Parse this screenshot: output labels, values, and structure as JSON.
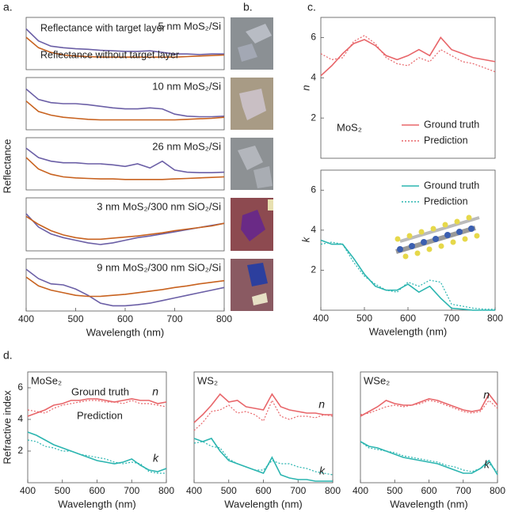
{
  "panel_labels": {
    "a": "a.",
    "b": "b.",
    "c": "c.",
    "d": "d."
  },
  "chart_data": [
    {
      "type": "line",
      "title": "5 nm MoS₂/Si",
      "ylabel": "Reflectance",
      "x": [
        400,
        425,
        450,
        475,
        500,
        525,
        550,
        575,
        600,
        625,
        650,
        675,
        700,
        725,
        750,
        775,
        800
      ],
      "xlim": [
        400,
        800
      ],
      "ylim": [
        0,
        1
      ],
      "series": [
        {
          "name": "Reflectance with target layer",
          "color": "#6b5fa6",
          "line": "solid",
          "values": [
            0.78,
            0.55,
            0.45,
            0.42,
            0.4,
            0.39,
            0.37,
            0.36,
            0.35,
            0.35,
            0.36,
            0.33,
            0.3,
            0.3,
            0.29,
            0.3,
            0.3
          ]
        },
        {
          "name": "Reflectance without target layer",
          "color": "#c8621f",
          "line": "solid",
          "values": [
            0.62,
            0.42,
            0.33,
            0.28,
            0.26,
            0.25,
            0.24,
            0.24,
            0.24,
            0.24,
            0.24,
            0.24,
            0.24,
            0.25,
            0.26,
            0.27,
            0.28
          ]
        }
      ]
    },
    {
      "type": "line",
      "title": "10 nm MoS₂/Si",
      "x": [
        400,
        425,
        450,
        475,
        500,
        525,
        550,
        575,
        600,
        625,
        650,
        675,
        700,
        725,
        750,
        775,
        800
      ],
      "xlim": [
        400,
        800
      ],
      "ylim": [
        0,
        1
      ],
      "series": [
        {
          "color": "#6b5fa6",
          "line": "solid",
          "values": [
            0.78,
            0.58,
            0.52,
            0.5,
            0.5,
            0.48,
            0.45,
            0.42,
            0.4,
            0.4,
            0.42,
            0.4,
            0.3,
            0.26,
            0.25,
            0.25,
            0.26
          ]
        },
        {
          "color": "#c8621f",
          "line": "solid",
          "values": [
            0.55,
            0.35,
            0.28,
            0.24,
            0.22,
            0.2,
            0.19,
            0.19,
            0.19,
            0.19,
            0.19,
            0.19,
            0.19,
            0.2,
            0.21,
            0.22,
            0.24
          ]
        }
      ]
    },
    {
      "type": "line",
      "title": "26 nm MoS₂/Si",
      "x": [
        400,
        425,
        450,
        475,
        500,
        525,
        550,
        575,
        600,
        625,
        650,
        675,
        700,
        725,
        750,
        775,
        800
      ],
      "xlim": [
        400,
        800
      ],
      "ylim": [
        0,
        1
      ],
      "series": [
        {
          "color": "#6b5fa6",
          "line": "solid",
          "values": [
            0.8,
            0.62,
            0.55,
            0.52,
            0.52,
            0.5,
            0.5,
            0.48,
            0.45,
            0.5,
            0.42,
            0.55,
            0.38,
            0.34,
            0.33,
            0.33,
            0.34
          ]
        },
        {
          "color": "#c8621f",
          "line": "solid",
          "values": [
            0.62,
            0.4,
            0.3,
            0.25,
            0.23,
            0.22,
            0.21,
            0.21,
            0.2,
            0.2,
            0.2,
            0.2,
            0.21,
            0.22,
            0.23,
            0.24,
            0.25
          ]
        }
      ]
    },
    {
      "type": "line",
      "title": "3 nm MoS₂/300 nm SiO₂/Si",
      "x": [
        400,
        425,
        450,
        475,
        500,
        525,
        550,
        575,
        600,
        625,
        650,
        675,
        700,
        725,
        750,
        775,
        800
      ],
      "xlim": [
        400,
        800
      ],
      "ylim": [
        0,
        1
      ],
      "series": [
        {
          "color": "#6b5fa6",
          "line": "solid",
          "values": [
            0.7,
            0.45,
            0.32,
            0.25,
            0.2,
            0.15,
            0.12,
            0.15,
            0.2,
            0.25,
            0.28,
            0.32,
            0.36,
            0.4,
            0.44,
            0.48,
            0.52
          ]
        },
        {
          "color": "#c8621f",
          "line": "solid",
          "values": [
            0.65,
            0.5,
            0.38,
            0.3,
            0.25,
            0.22,
            0.22,
            0.24,
            0.26,
            0.28,
            0.31,
            0.34,
            0.38,
            0.41,
            0.44,
            0.47,
            0.52
          ]
        }
      ]
    },
    {
      "type": "line",
      "title": "9 nm MoS₂/300 nm SiO₂/Si",
      "xlabel": "Wavelength (nm)",
      "x": [
        400,
        425,
        450,
        475,
        500,
        525,
        550,
        575,
        600,
        625,
        650,
        675,
        700,
        725,
        750,
        775,
        800
      ],
      "xlim": [
        400,
        800
      ],
      "ylim": [
        0,
        1
      ],
      "xticks": [
        400,
        500,
        600,
        700,
        800
      ],
      "series": [
        {
          "color": "#6b5fa6",
          "line": "solid",
          "values": [
            0.8,
            0.62,
            0.52,
            0.5,
            0.42,
            0.3,
            0.15,
            0.1,
            0.1,
            0.12,
            0.15,
            0.2,
            0.25,
            0.3,
            0.35,
            0.4,
            0.45
          ]
        },
        {
          "color": "#c8621f",
          "line": "solid",
          "values": [
            0.65,
            0.48,
            0.4,
            0.35,
            0.3,
            0.28,
            0.28,
            0.3,
            0.32,
            0.35,
            0.38,
            0.41,
            0.45,
            0.48,
            0.52,
            0.55,
            0.58
          ]
        }
      ]
    },
    {
      "type": "line",
      "ylabel": "n",
      "annotations": [
        "MoS₂"
      ],
      "legend": "lower right",
      "x": [
        400,
        425,
        450,
        475,
        500,
        525,
        550,
        575,
        600,
        625,
        650,
        675,
        700,
        725,
        750,
        775,
        800
      ],
      "xlim": [
        400,
        800
      ],
      "ylim": [
        0,
        7
      ],
      "yticks": [
        2,
        4,
        6
      ],
      "series": [
        {
          "name": "Ground truth",
          "color": "#e8666a",
          "line": "solid",
          "values": [
            4.1,
            4.6,
            5.2,
            5.7,
            5.9,
            5.6,
            5.1,
            4.9,
            5.1,
            5.4,
            5.1,
            6.0,
            5.4,
            5.2,
            5.0,
            4.9,
            4.8
          ]
        },
        {
          "name": "Prediction",
          "color": "#e8666a",
          "line": "dotted",
          "values": [
            5.2,
            4.9,
            5.0,
            5.8,
            6.1,
            5.7,
            5.0,
            4.7,
            4.6,
            5.0,
            4.8,
            5.4,
            5.1,
            4.8,
            4.7,
            4.5,
            4.3
          ]
        }
      ]
    },
    {
      "type": "line",
      "ylabel": "k",
      "xlabel": "Wavelength (nm)",
      "legend": "upper right",
      "x": [
        400,
        425,
        450,
        475,
        500,
        525,
        550,
        575,
        600,
        625,
        650,
        675,
        700,
        725,
        750,
        775,
        800
      ],
      "xlim": [
        400,
        800
      ],
      "ylim": [
        0,
        7
      ],
      "yticks": [
        2,
        4,
        6
      ],
      "xticks": [
        400,
        500,
        600,
        700,
        800
      ],
      "series": [
        {
          "name": "Ground truth",
          "color": "#2bb5b0",
          "line": "solid",
          "values": [
            3.5,
            3.3,
            3.3,
            2.6,
            1.8,
            1.2,
            1.0,
            1.0,
            1.3,
            0.9,
            1.2,
            0.6,
            0.1,
            0.05,
            0.0,
            0.0,
            0.0
          ]
        },
        {
          "name": "Prediction",
          "color": "#2bb5b0",
          "line": "dotted",
          "values": [
            3.3,
            3.4,
            3.3,
            2.4,
            1.7,
            1.3,
            1.0,
            0.9,
            1.4,
            1.2,
            1.5,
            1.4,
            0.3,
            0.2,
            0.1,
            0.05,
            0.05
          ]
        }
      ]
    },
    {
      "type": "line",
      "title": "MoSe₂",
      "ylabel": "Refractive index",
      "xlabel": "Wavelength (nm)",
      "annotations": [
        "Ground truth",
        "Prediction"
      ],
      "x": [
        400,
        425,
        450,
        475,
        500,
        525,
        550,
        575,
        600,
        625,
        650,
        675,
        700,
        725,
        750,
        775,
        800
      ],
      "xlim": [
        400,
        800
      ],
      "ylim": [
        0,
        7
      ],
      "yticks": [
        2,
        4,
        6
      ],
      "xticks": [
        400,
        500,
        600,
        700,
        800
      ],
      "series": [
        {
          "label": "n",
          "color": "#e8666a",
          "line": "solid",
          "values": [
            4.2,
            4.4,
            4.6,
            4.9,
            5.0,
            5.2,
            5.2,
            5.3,
            5.3,
            5.2,
            5.1,
            5.2,
            5.3,
            5.2,
            5.2,
            5.0,
            5.1
          ]
        },
        {
          "color": "#e8666a",
          "line": "dotted",
          "values": [
            4.6,
            4.5,
            4.4,
            4.7,
            4.9,
            5.0,
            5.1,
            5.2,
            5.2,
            5.1,
            5.1,
            5.0,
            5.2,
            5.0,
            5.0,
            4.9,
            4.8
          ]
        },
        {
          "label": "k",
          "color": "#2bb5b0",
          "line": "solid",
          "values": [
            3.2,
            3.0,
            2.7,
            2.4,
            2.2,
            2.0,
            1.8,
            1.6,
            1.4,
            1.3,
            1.2,
            1.3,
            1.5,
            1.1,
            0.8,
            0.7,
            0.9
          ]
        },
        {
          "color": "#2bb5b0",
          "line": "dotted",
          "values": [
            2.7,
            2.6,
            2.3,
            2.2,
            2.0,
            2.0,
            1.8,
            1.7,
            1.6,
            1.5,
            1.3,
            1.2,
            1.3,
            1.2,
            0.7,
            0.6,
            0.6
          ]
        }
      ]
    },
    {
      "type": "line",
      "title": "WS₂",
      "xlabel": "Wavelength (nm)",
      "x": [
        400,
        425,
        450,
        475,
        500,
        525,
        550,
        575,
        600,
        625,
        650,
        675,
        700,
        725,
        750,
        775,
        800
      ],
      "xlim": [
        400,
        800
      ],
      "ylim": [
        0,
        7
      ],
      "xticks": [
        400,
        500,
        600,
        700,
        800
      ],
      "series": [
        {
          "label": "n",
          "color": "#e8666a",
          "line": "solid",
          "values": [
            3.8,
            4.3,
            4.9,
            5.6,
            5.1,
            5.2,
            4.8,
            4.7,
            4.6,
            5.6,
            4.8,
            4.6,
            4.5,
            4.4,
            4.4,
            4.3,
            4.3
          ]
        },
        {
          "color": "#e8666a",
          "line": "dotted",
          "values": [
            3.3,
            3.8,
            4.5,
            4.6,
            4.9,
            4.4,
            4.5,
            4.3,
            3.9,
            5.2,
            4.2,
            4.0,
            4.2,
            4.2,
            4.1,
            4.3,
            4.2
          ]
        },
        {
          "label": "k",
          "color": "#2bb5b0",
          "line": "solid",
          "values": [
            2.8,
            2.6,
            2.8,
            2.0,
            1.4,
            1.2,
            1.0,
            0.8,
            0.6,
            1.6,
            0.5,
            0.3,
            0.2,
            0.2,
            0.1,
            0.1,
            0.1
          ]
        },
        {
          "color": "#2bb5b0",
          "line": "dotted",
          "values": [
            2.5,
            2.6,
            2.3,
            2.2,
            1.5,
            1.2,
            1.0,
            0.8,
            0.8,
            1.4,
            1.2,
            1.2,
            1.0,
            0.9,
            0.7,
            0.6,
            0.5
          ]
        }
      ]
    },
    {
      "type": "line",
      "title": "WSe₂",
      "xlabel": "Wavelength (nm)",
      "x": [
        400,
        425,
        450,
        475,
        500,
        525,
        550,
        575,
        600,
        625,
        650,
        675,
        700,
        725,
        750,
        775,
        800
      ],
      "xlim": [
        400,
        800
      ],
      "ylim": [
        0,
        7
      ],
      "xticks": [
        400,
        500,
        600,
        700,
        800
      ],
      "series": [
        {
          "label": "n",
          "color": "#e8666a",
          "line": "solid",
          "values": [
            4.2,
            4.5,
            4.8,
            5.2,
            5.0,
            4.9,
            4.9,
            5.1,
            5.3,
            5.2,
            5.0,
            4.8,
            4.6,
            4.5,
            4.6,
            5.6,
            4.9
          ]
        },
        {
          "color": "#e8666a",
          "line": "dotted",
          "values": [
            4.3,
            4.4,
            4.6,
            4.8,
            4.9,
            4.8,
            4.9,
            5.0,
            5.2,
            5.1,
            4.9,
            4.7,
            4.5,
            4.4,
            4.5,
            5.2,
            4.7
          ]
        },
        {
          "label": "k",
          "color": "#2bb5b0",
          "line": "solid",
          "values": [
            2.6,
            2.3,
            2.2,
            2.0,
            1.8,
            1.6,
            1.5,
            1.4,
            1.3,
            1.2,
            1.0,
            0.8,
            0.6,
            0.6,
            0.9,
            1.4,
            0.5
          ]
        },
        {
          "color": "#2bb5b0",
          "line": "dotted",
          "values": [
            2.6,
            2.2,
            2.1,
            2.0,
            1.9,
            1.7,
            1.6,
            1.5,
            1.4,
            1.3,
            1.1,
            1.0,
            0.8,
            0.7,
            0.9,
            1.2,
            0.7
          ]
        }
      ]
    }
  ]
}
